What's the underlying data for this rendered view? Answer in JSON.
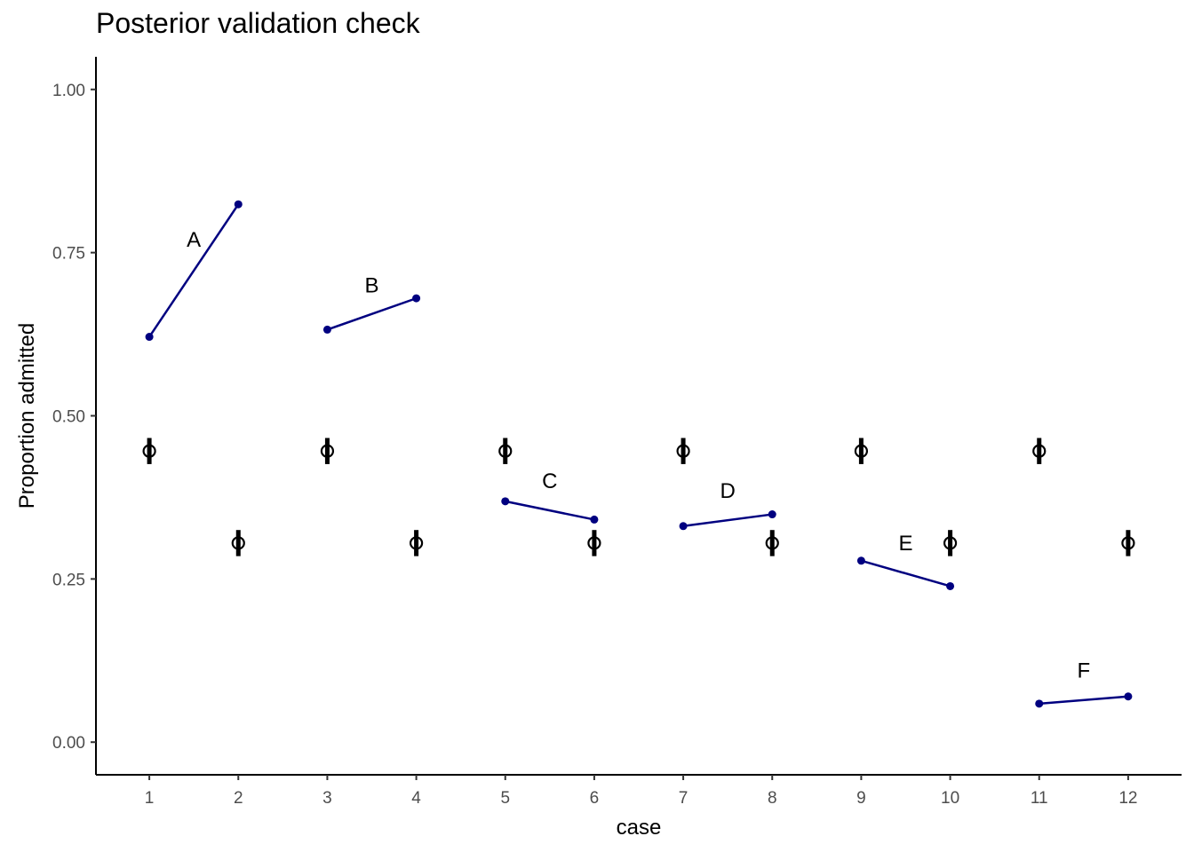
{
  "chart_data": {
    "type": "scatter",
    "title": "Posterior validation check",
    "xlabel": "case",
    "ylabel": "Proportion admitted",
    "xlim": [
      0.4,
      12.6
    ],
    "ylim": [
      -0.05,
      1.05
    ],
    "x_ticks": [
      "1",
      "2",
      "3",
      "4",
      "5",
      "6",
      "7",
      "8",
      "9",
      "10",
      "11",
      "12"
    ],
    "y_ticks": [
      "0.00",
      "0.25",
      "0.50",
      "0.75",
      "1.00"
    ],
    "grid": false,
    "legend": "none",
    "colors": {
      "observed": "#000080",
      "prediction": "#000000",
      "axis": "#000000"
    },
    "observed_groups": [
      {
        "label": "A",
        "x": [
          1,
          2
        ],
        "y": [
          0.621,
          0.824
        ],
        "label_pos": [
          1.5,
          0.77
        ]
      },
      {
        "label": "B",
        "x": [
          3,
          4
        ],
        "y": [
          0.632,
          0.68
        ],
        "label_pos": [
          3.5,
          0.7
        ]
      },
      {
        "label": "C",
        "x": [
          5,
          6
        ],
        "y": [
          0.369,
          0.341
        ],
        "label_pos": [
          5.5,
          0.4
        ]
      },
      {
        "label": "D",
        "x": [
          7,
          8
        ],
        "y": [
          0.331,
          0.349
        ],
        "label_pos": [
          7.5,
          0.385
        ]
      },
      {
        "label": "E",
        "x": [
          9,
          10
        ],
        "y": [
          0.278,
          0.239
        ],
        "label_pos": [
          9.5,
          0.305
        ]
      },
      {
        "label": "F",
        "x": [
          11,
          12
        ],
        "y": [
          0.059,
          0.07
        ],
        "label_pos": [
          11.5,
          0.11
        ]
      }
    ],
    "predictions": [
      {
        "case": 1,
        "mean": 0.446,
        "low": 0.426,
        "high": 0.466
      },
      {
        "case": 2,
        "mean": 0.305,
        "low": 0.285,
        "high": 0.325
      },
      {
        "case": 3,
        "mean": 0.446,
        "low": 0.426,
        "high": 0.466
      },
      {
        "case": 4,
        "mean": 0.305,
        "low": 0.285,
        "high": 0.325
      },
      {
        "case": 5,
        "mean": 0.446,
        "low": 0.426,
        "high": 0.466
      },
      {
        "case": 6,
        "mean": 0.305,
        "low": 0.285,
        "high": 0.325
      },
      {
        "case": 7,
        "mean": 0.446,
        "low": 0.426,
        "high": 0.466
      },
      {
        "case": 8,
        "mean": 0.305,
        "low": 0.285,
        "high": 0.325
      },
      {
        "case": 9,
        "mean": 0.446,
        "low": 0.426,
        "high": 0.466
      },
      {
        "case": 10,
        "mean": 0.305,
        "low": 0.285,
        "high": 0.325
      },
      {
        "case": 11,
        "mean": 0.446,
        "low": 0.426,
        "high": 0.466
      },
      {
        "case": 12,
        "mean": 0.305,
        "low": 0.285,
        "high": 0.325
      }
    ]
  }
}
